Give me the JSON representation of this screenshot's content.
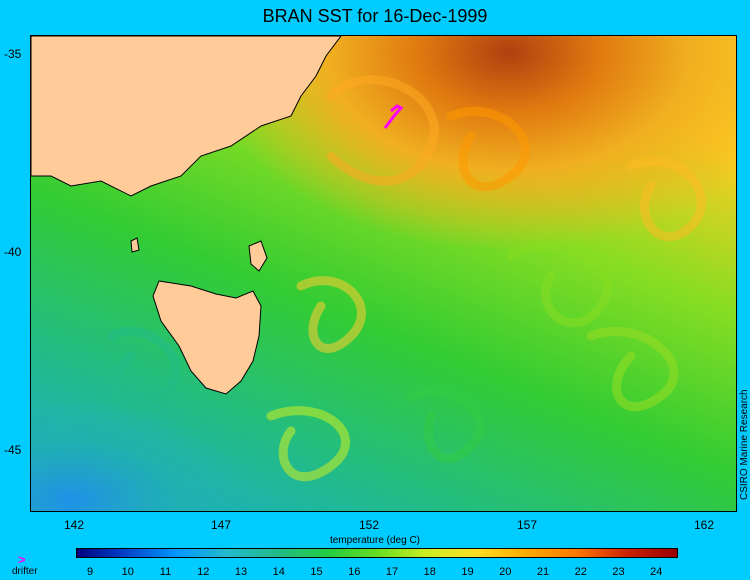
{
  "title": "BRAN SST for 16-Dec-1999",
  "y_axis": {
    "ticks": [
      "-35",
      "-40",
      "-45"
    ]
  },
  "x_axis": {
    "ticks": [
      "142",
      "147",
      "152",
      "157",
      "162"
    ],
    "label": "temperature (deg C)"
  },
  "credit": "CSIRO Marine Research",
  "legend": {
    "marker": ">",
    "label": "drifter"
  },
  "colorbar": {
    "ticks": [
      "9",
      "10",
      "11",
      "12",
      "13",
      "14",
      "15",
      "16",
      "17",
      "18",
      "19",
      "20",
      "21",
      "22",
      "23",
      "24"
    ],
    "stops": [
      "#000080",
      "#0044cc",
      "#0099ff",
      "#22bbcc",
      "#22bb88",
      "#22cc44",
      "#66dd22",
      "#ccee22",
      "#ffdd22",
      "#ffaa00",
      "#ff7700",
      "#cc2200",
      "#990000"
    ]
  },
  "colors": {
    "background": "#00ccff",
    "land": "#ffcc99",
    "drifter": "#ff00ff"
  }
}
